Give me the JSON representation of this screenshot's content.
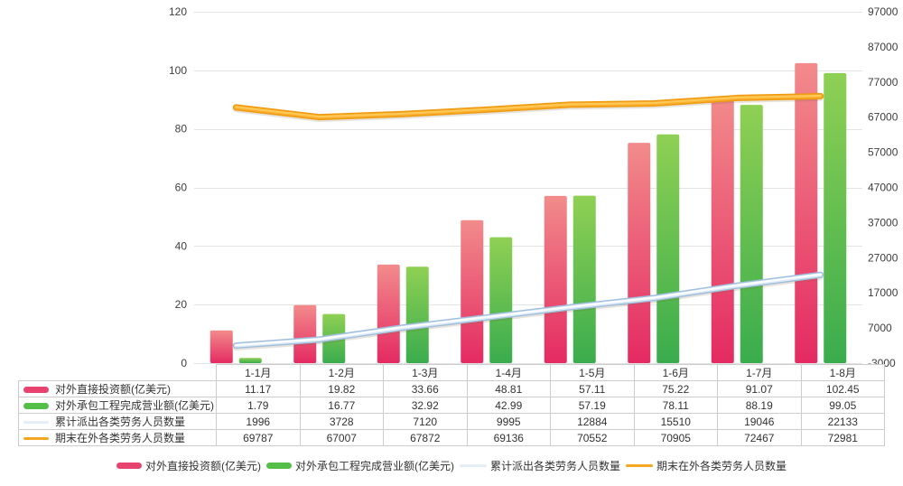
{
  "chart_data": {
    "type": "combo-bar-line",
    "title": "",
    "categories": [
      "1-1月",
      "1-2月",
      "1-3月",
      "1-4月",
      "1-5月",
      "1-6月",
      "1-7月",
      "1-8月"
    ],
    "series": [
      {
        "id": "direct-investment",
        "name": "对外直接投资额(亿美元)",
        "type": "bar",
        "axis": "left",
        "values": [
          11.17,
          19.82,
          33.66,
          48.81,
          57.11,
          75.22,
          91.07,
          102.45
        ],
        "color_top": "#F28B8B",
        "color_bottom": "#E42A62",
        "swatch": "#E8436E"
      },
      {
        "id": "contract-revenue",
        "name": "对外承包工程完成营业额(亿美元)",
        "type": "bar",
        "axis": "left",
        "values": [
          1.79,
          16.77,
          32.92,
          42.99,
          57.19,
          78.11,
          88.19,
          99.05
        ],
        "color_top": "#8FD054",
        "color_bottom": "#3AAC4D",
        "swatch": "#55BE49"
      },
      {
        "id": "dispatched-workers",
        "name": "累计派出各类劳务人员数量",
        "type": "line",
        "axis": "right",
        "values": [
          1996,
          3728,
          7120,
          9995,
          12884,
          15510,
          19046,
          22133
        ],
        "color": "#9FBEDC",
        "color_mid": "#DCEAF6",
        "color_core": "#FFFFFF",
        "swatch": "#E4EEF7"
      },
      {
        "id": "workers-abroad",
        "name": "期末在外各类劳务人员数量",
        "type": "line",
        "axis": "right",
        "values": [
          69787,
          67007,
          67872,
          69136,
          70552,
          70905,
          72467,
          72981
        ],
        "color": "#EE9A10",
        "color_mid": "#FBAF2C",
        "color_core": "#FFC95A",
        "swatch": "#F5A623"
      }
    ],
    "left_axis": {
      "min": 0,
      "max": 120,
      "step": 20,
      "ticks": [
        0,
        20,
        40,
        60,
        80,
        100,
        120
      ]
    },
    "right_axis": {
      "min": -3000,
      "max": 97000,
      "step": 10000,
      "ticks": [
        -3000,
        7000,
        17000,
        27000,
        37000,
        47000,
        57000,
        67000,
        77000,
        87000,
        97000
      ]
    },
    "grid": "horizontal-left-axis-only",
    "gridline_color": "#E3E3E3",
    "axis_label_color": "#3d3d3d",
    "legend_position": "bottom",
    "plot_background": "#FFFFFF"
  }
}
